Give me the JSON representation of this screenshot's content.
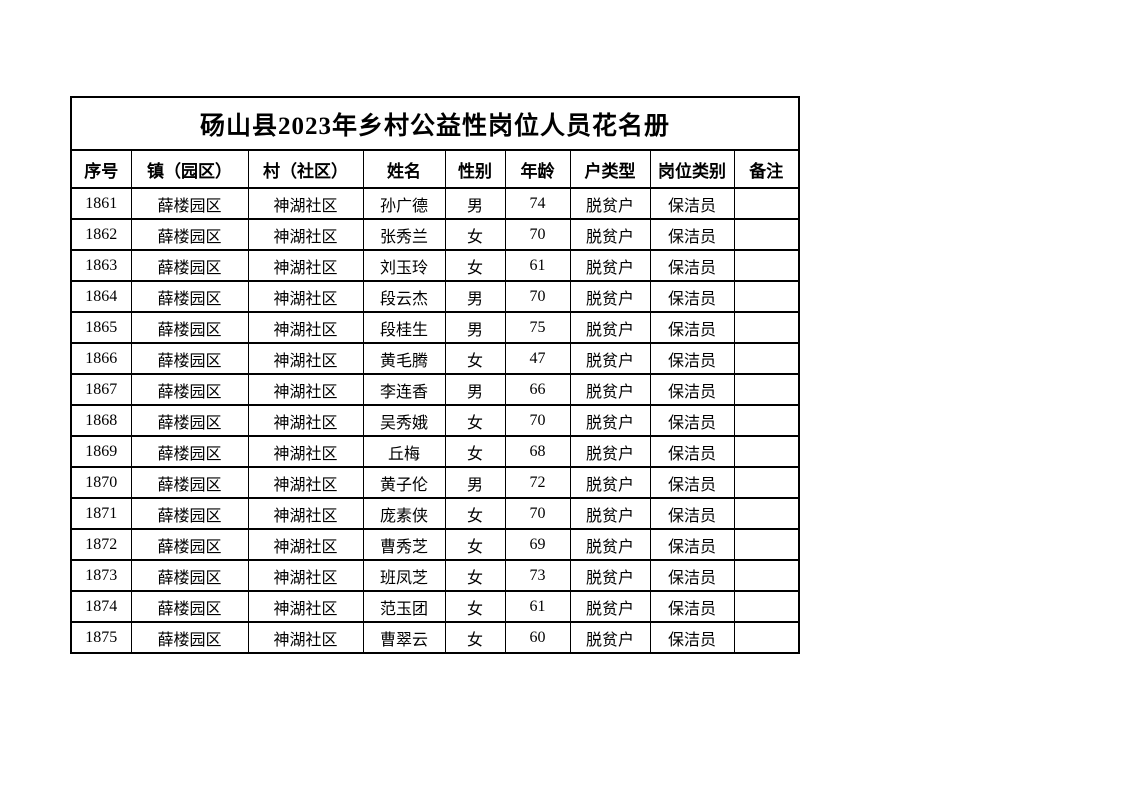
{
  "document": {
    "title": "砀山县2023年乡村公益性岗位人员花名册",
    "background_color": "#ffffff",
    "border_color": "#000000"
  },
  "table": {
    "headers": [
      "序号",
      "镇（园区）",
      "村（社区）",
      "姓名",
      "性别",
      "年龄",
      "户类型",
      "岗位类别",
      "备注"
    ],
    "rows": [
      [
        "1861",
        "薛楼园区",
        "神湖社区",
        "孙广德",
        "男",
        "74",
        "脱贫户",
        "保洁员",
        ""
      ],
      [
        "1862",
        "薛楼园区",
        "神湖社区",
        "张秀兰",
        "女",
        "70",
        "脱贫户",
        "保洁员",
        ""
      ],
      [
        "1863",
        "薛楼园区",
        "神湖社区",
        "刘玉玲",
        "女",
        "61",
        "脱贫户",
        "保洁员",
        ""
      ],
      [
        "1864",
        "薛楼园区",
        "神湖社区",
        "段云杰",
        "男",
        "70",
        "脱贫户",
        "保洁员",
        ""
      ],
      [
        "1865",
        "薛楼园区",
        "神湖社区",
        "段桂生",
        "男",
        "75",
        "脱贫户",
        "保洁员",
        ""
      ],
      [
        "1866",
        "薛楼园区",
        "神湖社区",
        "黄毛腾",
        "女",
        "47",
        "脱贫户",
        "保洁员",
        ""
      ],
      [
        "1867",
        "薛楼园区",
        "神湖社区",
        "李连香",
        "男",
        "66",
        "脱贫户",
        "保洁员",
        ""
      ],
      [
        "1868",
        "薛楼园区",
        "神湖社区",
        "吴秀娥",
        "女",
        "70",
        "脱贫户",
        "保洁员",
        ""
      ],
      [
        "1869",
        "薛楼园区",
        "神湖社区",
        "丘梅",
        "女",
        "68",
        "脱贫户",
        "保洁员",
        ""
      ],
      [
        "1870",
        "薛楼园区",
        "神湖社区",
        "黄子伦",
        "男",
        "72",
        "脱贫户",
        "保洁员",
        ""
      ],
      [
        "1871",
        "薛楼园区",
        "神湖社区",
        "庞素侠",
        "女",
        "70",
        "脱贫户",
        "保洁员",
        ""
      ],
      [
        "1872",
        "薛楼园区",
        "神湖社区",
        "曹秀芝",
        "女",
        "69",
        "脱贫户",
        "保洁员",
        ""
      ],
      [
        "1873",
        "薛楼园区",
        "神湖社区",
        "班凤芝",
        "女",
        "73",
        "脱贫户",
        "保洁员",
        ""
      ],
      [
        "1874",
        "薛楼园区",
        "神湖社区",
        "范玉团",
        "女",
        "61",
        "脱贫户",
        "保洁员",
        ""
      ],
      [
        "1875",
        "薛楼园区",
        "神湖社区",
        "曹翠云",
        "女",
        "60",
        "脱贫户",
        "保洁员",
        ""
      ]
    ],
    "column_keys": [
      "index",
      "town",
      "village",
      "name",
      "gender",
      "age",
      "household-type",
      "job-category",
      "remark"
    ]
  }
}
